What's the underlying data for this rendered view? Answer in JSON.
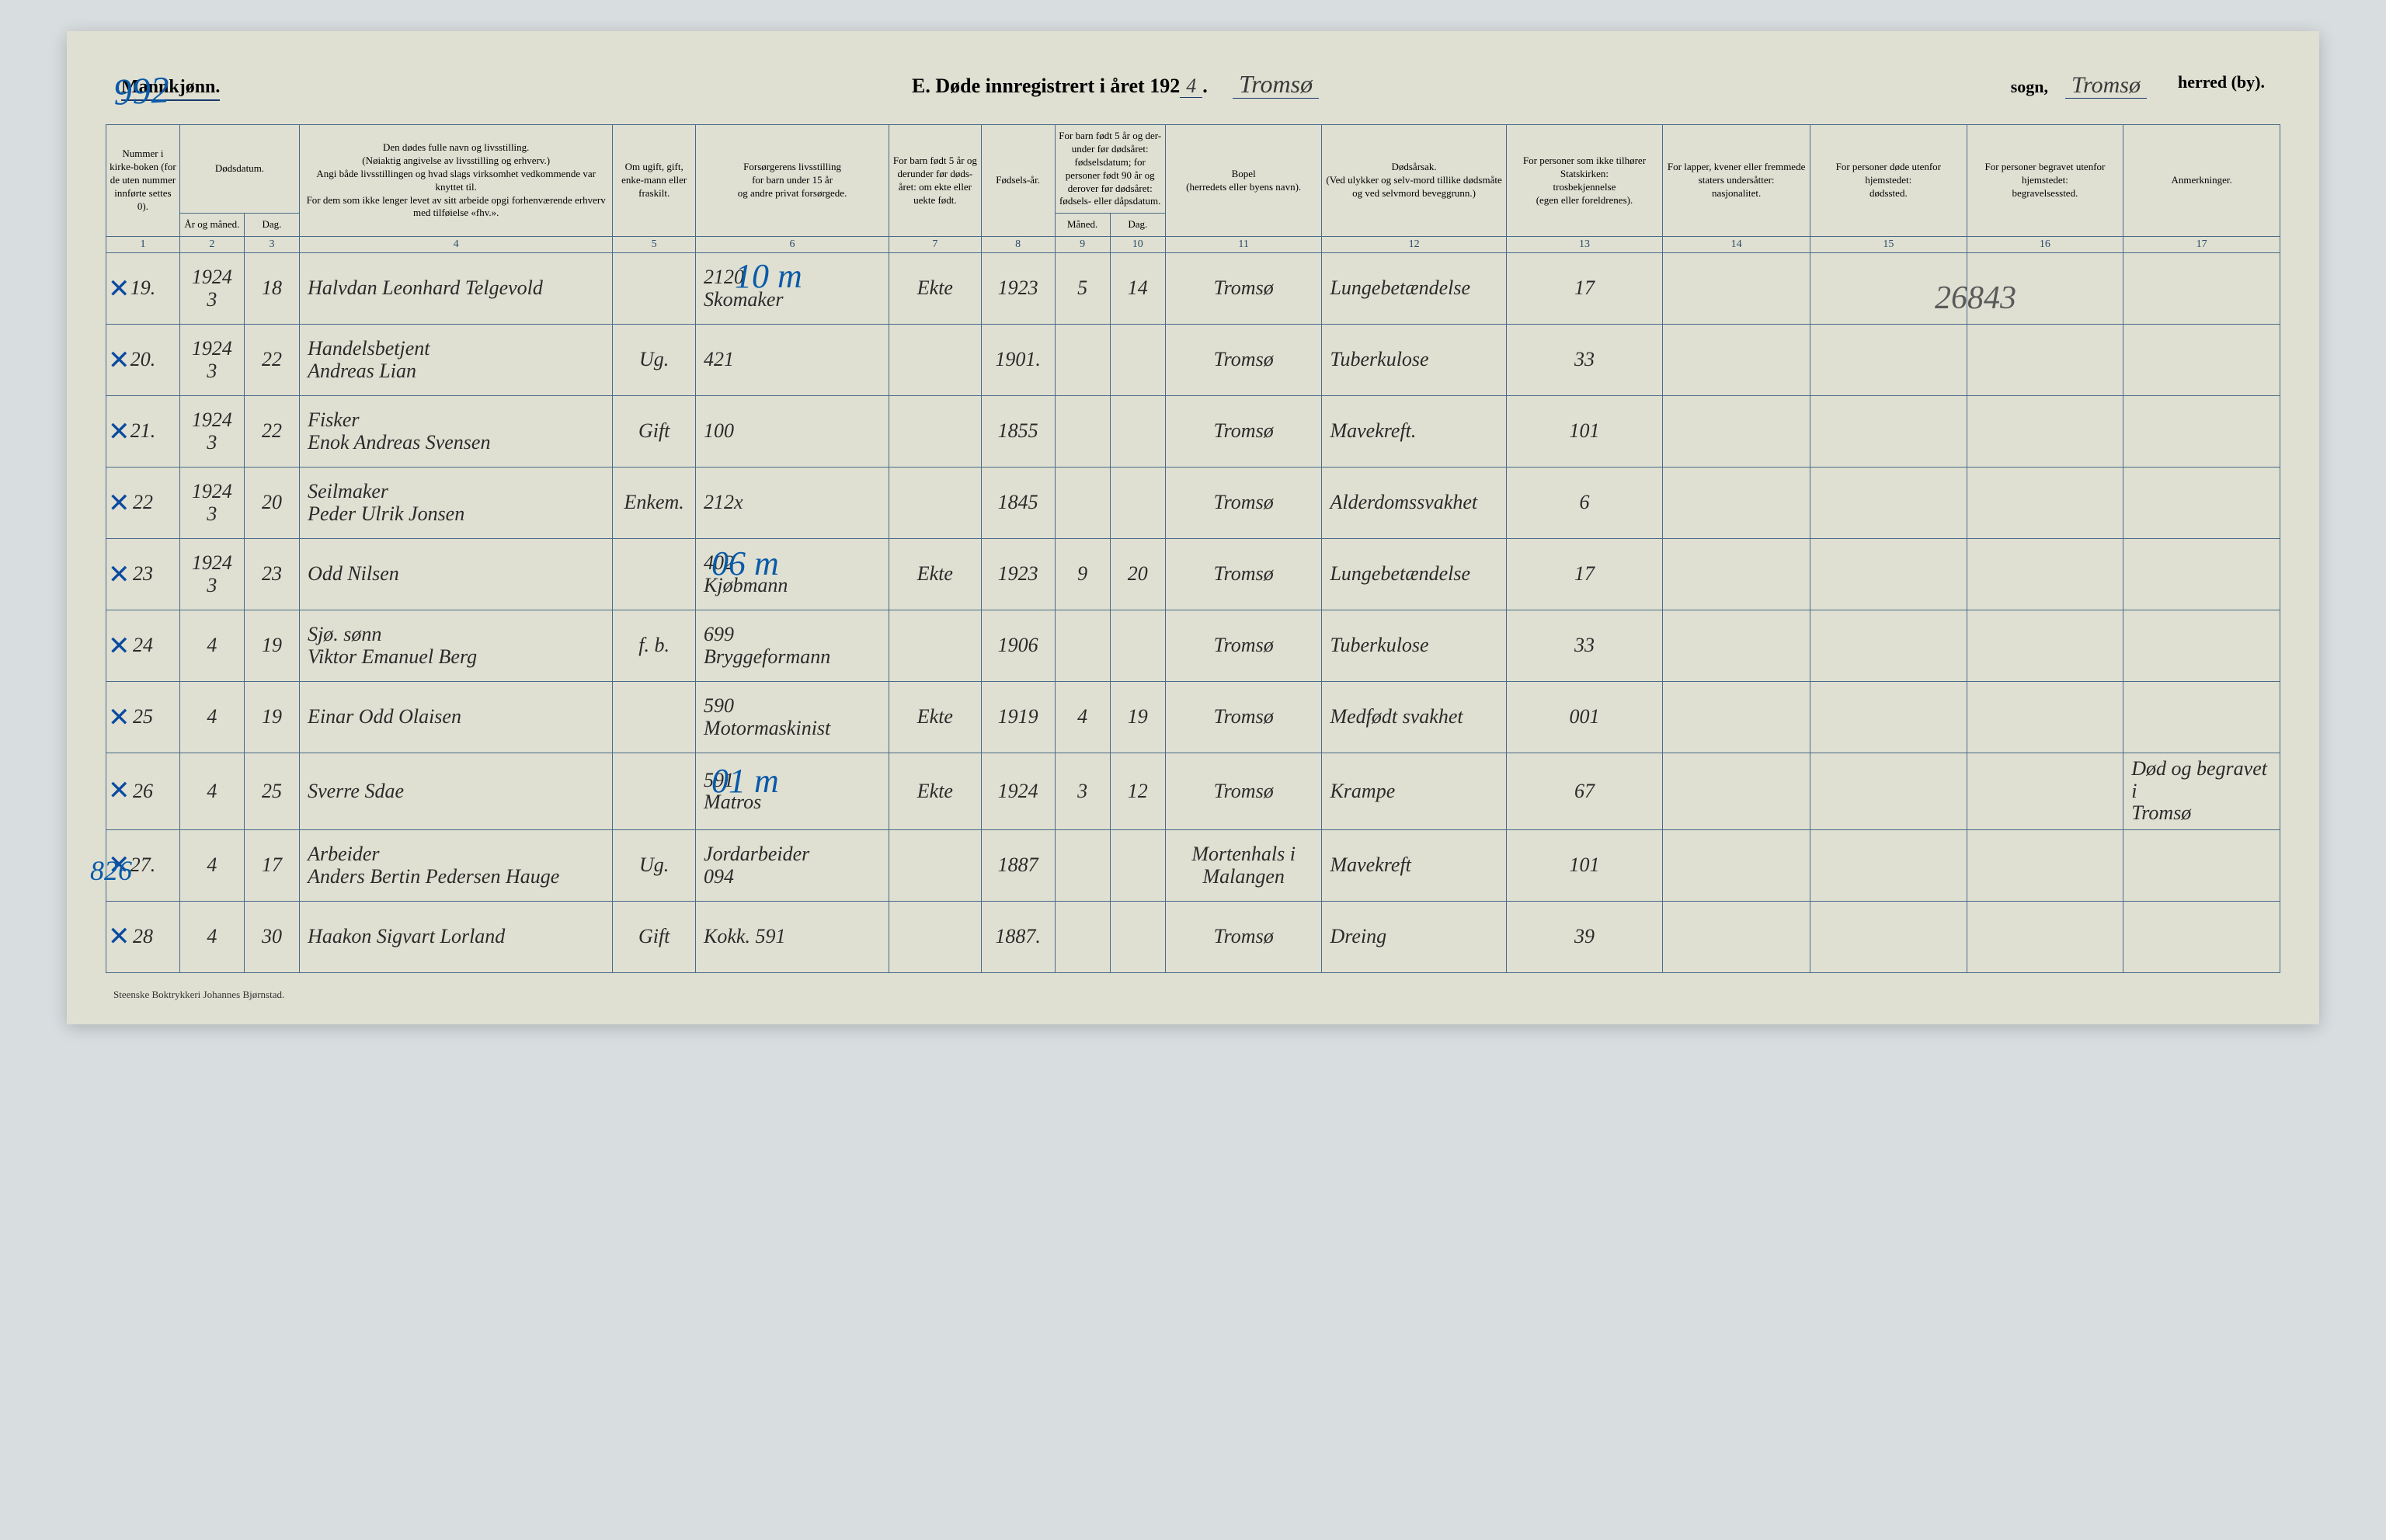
{
  "header": {
    "gender": "Mannkjønn.",
    "page_number_hw": "992",
    "title_prefix": "E.  Døde innregistrert i året 192",
    "year_suffix": "4",
    "title_suffix": ".",
    "sogn_hw": "Tromsø",
    "sogn_label": "sogn,",
    "herred_hw": "Tromsø",
    "herred_label": "herred (by)."
  },
  "column_headers": {
    "c1": "Nummer i kirke-boken (for de uten nummer innførte settes 0).",
    "c2_top": "Dødsdatum.",
    "c2a": "År og måned.",
    "c2b": "Dag.",
    "c4": "Den dødes fulle navn og livsstilling.\n(Nøiaktig angivelse av livsstilling og erhverv.)\nAngi både livsstillingen og hvad slags virksomhet vedkommende var knyttet til.\nFor dem som ikke lenger levet av sitt arbeide opgi forhenværende erhverv med tilføielse «fhv.».",
    "c5": "Om ugift, gift, enke-mann eller fraskilt.",
    "c6": "Forsørgerens livsstilling\nfor barn under 15 år\nog andre privat forsørgede.",
    "c7": "For barn født 5 år og derunder før døds-året: om ekte eller uekte født.",
    "c8": "Fødsels-år.",
    "c9_top": "For barn født 5 år og der-under før dødsåret: fødselsdatum; for personer født 90 år og derover før dødsåret: fødsels- eller dåpsdatum.",
    "c9a": "Måned.",
    "c9b": "Dag.",
    "c11": "Bopel\n(herredets eller byens navn).",
    "c12": "Dødsårsak.\n(Ved ulykker og selv-mord tillike dødsmåte og ved selvmord beveggrunn.)",
    "c13": "For personer som ikke tilhører Statskirken:\ntrosbekjennelse\n(egen eller foreldrenes).",
    "c14": "For lapper, kvener eller fremmede staters undersåtter:\nnasjonalitet.",
    "c15": "For personer døde utenfor hjemstedet:\ndødssted.",
    "c16": "For personer begravet utenfor hjemstedet:\nbegravelsessted.",
    "c17": "Anmerkninger."
  },
  "colnums": [
    "1",
    "2",
    "3",
    "4",
    "5",
    "6",
    "7",
    "8",
    "9",
    "10",
    "11",
    "12",
    "13",
    "14",
    "15",
    "16",
    "17"
  ],
  "overlays": {
    "top_10m": "10 m",
    "mid_06m": "06 m",
    "low_01m": "01 m",
    "corner_826": "826",
    "col15_big": "26843"
  },
  "rows": [
    {
      "num": "19.",
      "year_mo": "1924\n3",
      "day": "18",
      "name": "Halvdan Leonhard Telgevold",
      "status": "",
      "provider": "2120\nSkomaker",
      "ekte": "Ekte",
      "birth_year": "1923",
      "bm": "5",
      "bd": "14",
      "bopel": "Tromsø",
      "cause": "Lungebetændelse",
      "c13": "17",
      "c14": "",
      "c15": "",
      "c16": "",
      "c17": ""
    },
    {
      "num": "20.",
      "year_mo": "1924\n3",
      "day": "22",
      "name": "Handelsbetjent\nAndreas Lian",
      "status": "Ug.",
      "provider": "421",
      "ekte": "",
      "birth_year": "1901.",
      "bm": "",
      "bd": "",
      "bopel": "Tromsø",
      "cause": "Tuberkulose",
      "c13": "33",
      "c14": "",
      "c15": "",
      "c16": "",
      "c17": ""
    },
    {
      "num": "21.",
      "year_mo": "1924\n3",
      "day": "22",
      "name": "Fisker\nEnok Andreas Svensen",
      "status": "Gift",
      "provider": "100",
      "ekte": "",
      "birth_year": "1855",
      "bm": "",
      "bd": "",
      "bopel": "Tromsø",
      "cause": "Mavekreft.",
      "c13": "101",
      "c14": "",
      "c15": "",
      "c16": "",
      "c17": ""
    },
    {
      "num": "22",
      "year_mo": "1924\n3",
      "day": "20",
      "name": "Seilmaker\nPeder Ulrik Jonsen",
      "status": "Enkem.",
      "provider": "212x",
      "ekte": "",
      "birth_year": "1845",
      "bm": "",
      "bd": "",
      "bopel": "Tromsø",
      "cause": "Alderdomssvakhet",
      "c13": "6",
      "c14": "",
      "c15": "",
      "c16": "",
      "c17": ""
    },
    {
      "num": "23",
      "year_mo": "1924\n3",
      "day": "23",
      "name": "Odd Nilsen",
      "status": "",
      "provider": "402\nKjøbmann",
      "ekte": "Ekte",
      "birth_year": "1923",
      "bm": "9",
      "bd": "20",
      "bopel": "Tromsø",
      "cause": "Lungebetændelse",
      "c13": "17",
      "c14": "",
      "c15": "",
      "c16": "",
      "c17": ""
    },
    {
      "num": "24",
      "year_mo": "4",
      "day": "19",
      "name": "Sjø. sønn\nViktor Emanuel Berg",
      "status": "f. b.",
      "provider": "699\nBryggeformann",
      "ekte": "",
      "birth_year": "1906",
      "bm": "",
      "bd": "",
      "bopel": "Tromsø",
      "cause": "Tuberkulose",
      "c13": "33",
      "c14": "",
      "c15": "",
      "c16": "",
      "c17": ""
    },
    {
      "num": "25",
      "year_mo": "4",
      "day": "19",
      "name": "Einar Odd Olaisen",
      "status": "",
      "provider": "590\nMotormaskinist",
      "ekte": "Ekte",
      "birth_year": "1919",
      "bm": "4",
      "bd": "19",
      "bopel": "Tromsø",
      "cause": "Medfødt svakhet",
      "c13": "001",
      "c14": "",
      "c15": "",
      "c16": "",
      "c17": ""
    },
    {
      "num": "26",
      "year_mo": "4",
      "day": "25",
      "name": "Sverre Sdae",
      "status": "",
      "provider": "591\nMatros",
      "ekte": "Ekte",
      "birth_year": "1924",
      "bm": "3",
      "bd": "12",
      "bopel": "Tromsø",
      "cause": "Krampe",
      "c13": "67",
      "c14": "",
      "c15": "",
      "c16": "",
      "c17": "Død og begravet i\nTromsø"
    },
    {
      "num": "27.",
      "year_mo": "4",
      "day": "17",
      "name": "Arbeider\nAnders Bertin Pedersen Hauge",
      "status": "Ug.",
      "provider": "Jordarbeider\n094",
      "ekte": "",
      "birth_year": "1887",
      "bm": "",
      "bd": "",
      "bopel": "Mortenhals i\nMalangen",
      "cause": "Mavekreft",
      "c13": "101",
      "c14": "",
      "c15": "",
      "c16": "",
      "c17": ""
    },
    {
      "num": "28",
      "year_mo": "4",
      "day": "30",
      "name": "Haakon Sigvart Lorland",
      "status": "Gift",
      "provider": "Kokk.  591",
      "ekte": "",
      "birth_year": "1887.",
      "bm": "",
      "bd": "",
      "bopel": "Tromsø",
      "cause": "Dreing",
      "c13": "39",
      "c14": "",
      "c15": "",
      "c16": "",
      "c17": ""
    }
  ],
  "footer": "Steenske Boktrykkeri Johannes Bjørnstad."
}
